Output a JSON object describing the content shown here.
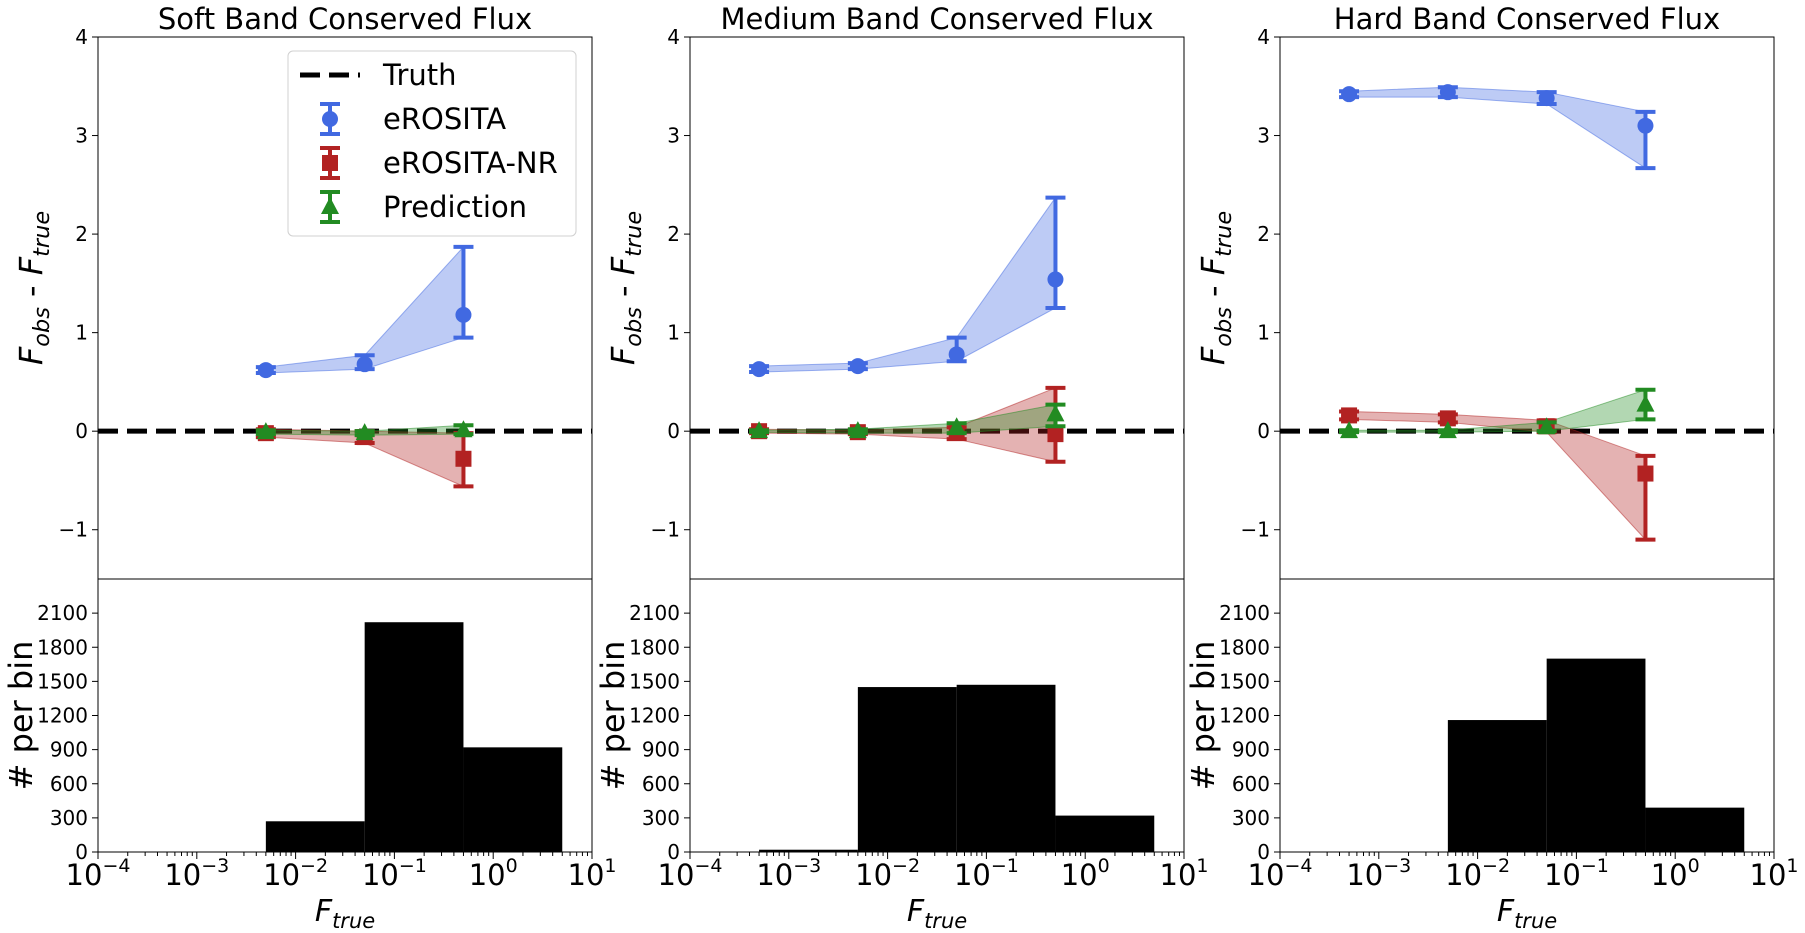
{
  "chart_data": [
    {
      "type": "line",
      "title": "Soft Band Conserved Flux",
      "ylabel_main": "F_obs - F_true",
      "ylabel_hist": "# per bin",
      "xlabel": "F_true",
      "xscale": "log",
      "xlim": [
        0.0001,
        10
      ],
      "ylim_main": [
        -1.5,
        4
      ],
      "ylim_hist": [
        0,
        2400
      ],
      "x_ticks": [
        {
          "base": "10",
          "exp": "−4"
        },
        {
          "base": "10",
          "exp": "−3"
        },
        {
          "base": "10",
          "exp": "−2"
        },
        {
          "base": "10",
          "exp": "−1"
        },
        {
          "base": "10",
          "exp": "0"
        },
        {
          "base": "10",
          "exp": "1"
        }
      ],
      "y_ticks_main": [
        "−1",
        "0",
        "1",
        "2",
        "3",
        "4"
      ],
      "y_ticks_hist": [
        "0",
        "300",
        "600",
        "900",
        "1200",
        "1500",
        "1800",
        "2100"
      ],
      "legend": {
        "placement": "top-right",
        "entries": [
          "Truth",
          "eROSITA",
          "eROSITA-NR",
          "Prediction"
        ]
      },
      "truth_line": 0,
      "series": [
        {
          "name": "eROSITA",
          "color": "#4169e1",
          "marker": "circle",
          "points": [
            {
              "x": 0.005,
              "y": 0.62,
              "lo": 0.59,
              "hi": 0.65
            },
            {
              "x": 0.05,
              "y": 0.68,
              "lo": 0.63,
              "hi": 0.77
            },
            {
              "x": 0.5,
              "y": 1.18,
              "lo": 0.95,
              "hi": 1.87
            }
          ]
        },
        {
          "name": "eROSITA-NR",
          "color": "#b22222",
          "marker": "square",
          "points": [
            {
              "x": 0.005,
              "y": -0.02,
              "lo": -0.06,
              "hi": 0.02
            },
            {
              "x": 0.05,
              "y": -0.06,
              "lo": -0.12,
              "hi": 0.0
            },
            {
              "x": 0.5,
              "y": -0.28,
              "lo": -0.56,
              "hi": -0.02
            }
          ]
        },
        {
          "name": "Prediction",
          "color": "#228b22",
          "marker": "triangle",
          "points": [
            {
              "x": 0.005,
              "y": -0.01,
              "lo": -0.03,
              "hi": 0.01
            },
            {
              "x": 0.05,
              "y": -0.02,
              "lo": -0.04,
              "hi": 0.0
            },
            {
              "x": 0.5,
              "y": 0.01,
              "lo": -0.03,
              "hi": 0.06
            }
          ]
        }
      ],
      "histogram": [
        {
          "x0": 0.005,
          "x1": 0.05,
          "count": 270
        },
        {
          "x0": 0.05,
          "x1": 0.5,
          "count": 2020
        },
        {
          "x0": 0.5,
          "x1": 5,
          "count": 920
        }
      ]
    },
    {
      "type": "line",
      "title": "Medium Band Conserved Flux",
      "ylabel_main": "F_obs - F_true",
      "ylabel_hist": "# per bin",
      "xlabel": "F_true",
      "xscale": "log",
      "xlim": [
        0.0001,
        10
      ],
      "ylim_main": [
        -1.5,
        4
      ],
      "ylim_hist": [
        0,
        2400
      ],
      "x_ticks": [
        {
          "base": "10",
          "exp": "−4"
        },
        {
          "base": "10",
          "exp": "−3"
        },
        {
          "base": "10",
          "exp": "−2"
        },
        {
          "base": "10",
          "exp": "−1"
        },
        {
          "base": "10",
          "exp": "0"
        },
        {
          "base": "10",
          "exp": "1"
        }
      ],
      "y_ticks_main": [
        "−1",
        "0",
        "1",
        "2",
        "3",
        "4"
      ],
      "y_ticks_hist": [
        "0",
        "300",
        "600",
        "900",
        "1200",
        "1500",
        "1800",
        "2100"
      ],
      "truth_line": 0,
      "series": [
        {
          "name": "eROSITA",
          "color": "#4169e1",
          "marker": "circle",
          "points": [
            {
              "x": 0.0005,
              "y": 0.63,
              "lo": 0.6,
              "hi": 0.66
            },
            {
              "x": 0.005,
              "y": 0.66,
              "lo": 0.63,
              "hi": 0.69
            },
            {
              "x": 0.05,
              "y": 0.78,
              "lo": 0.71,
              "hi": 0.95
            },
            {
              "x": 0.5,
              "y": 1.54,
              "lo": 1.25,
              "hi": 2.37
            }
          ]
        },
        {
          "name": "eROSITA-NR",
          "color": "#b22222",
          "marker": "square",
          "points": [
            {
              "x": 0.0005,
              "y": 0.0,
              "lo": -0.02,
              "hi": 0.02
            },
            {
              "x": 0.005,
              "y": -0.01,
              "lo": -0.03,
              "hi": 0.01
            },
            {
              "x": 0.05,
              "y": -0.01,
              "lo": -0.08,
              "hi": 0.04
            },
            {
              "x": 0.5,
              "y": -0.03,
              "lo": -0.31,
              "hi": 0.44
            }
          ]
        },
        {
          "name": "Prediction",
          "color": "#228b22",
          "marker": "triangle",
          "points": [
            {
              "x": 0.0005,
              "y": 0.0,
              "lo": -0.01,
              "hi": 0.01
            },
            {
              "x": 0.005,
              "y": 0.0,
              "lo": -0.02,
              "hi": 0.02
            },
            {
              "x": 0.05,
              "y": 0.04,
              "lo": -0.02,
              "hi": 0.08
            },
            {
              "x": 0.5,
              "y": 0.17,
              "lo": 0.05,
              "hi": 0.27
            }
          ]
        }
      ],
      "histogram": [
        {
          "x0": 0.0005,
          "x1": 0.005,
          "count": 20
        },
        {
          "x0": 0.005,
          "x1": 0.05,
          "count": 1450
        },
        {
          "x0": 0.05,
          "x1": 0.5,
          "count": 1470
        },
        {
          "x0": 0.5,
          "x1": 5,
          "count": 320
        }
      ]
    },
    {
      "type": "line",
      "title": "Hard Band Conserved Flux",
      "ylabel_main": "F_obs - F_true",
      "ylabel_hist": "# per bin",
      "xlabel": "F_true",
      "xscale": "log",
      "xlim": [
        0.0001,
        10
      ],
      "ylim_main": [
        -1.5,
        4
      ],
      "ylim_hist": [
        0,
        2400
      ],
      "x_ticks": [
        {
          "base": "10",
          "exp": "−4"
        },
        {
          "base": "10",
          "exp": "−3"
        },
        {
          "base": "10",
          "exp": "−2"
        },
        {
          "base": "10",
          "exp": "−1"
        },
        {
          "base": "10",
          "exp": "0"
        },
        {
          "base": "10",
          "exp": "1"
        }
      ],
      "y_ticks_main": [
        "−1",
        "0",
        "1",
        "2",
        "3",
        "4"
      ],
      "y_ticks_hist": [
        "0",
        "300",
        "600",
        "900",
        "1200",
        "1500",
        "1800",
        "2100"
      ],
      "truth_line": 0,
      "series": [
        {
          "name": "eROSITA",
          "color": "#4169e1",
          "marker": "circle",
          "points": [
            {
              "x": 0.0005,
              "y": 3.42,
              "lo": 3.39,
              "hi": 3.45
            },
            {
              "x": 0.005,
              "y": 3.44,
              "lo": 3.39,
              "hi": 3.49
            },
            {
              "x": 0.05,
              "y": 3.38,
              "lo": 3.32,
              "hi": 3.44
            },
            {
              "x": 0.5,
              "y": 3.1,
              "lo": 2.67,
              "hi": 3.24
            }
          ]
        },
        {
          "name": "eROSITA-NR",
          "color": "#b22222",
          "marker": "square",
          "points": [
            {
              "x": 0.0005,
              "y": 0.16,
              "lo": 0.12,
              "hi": 0.2
            },
            {
              "x": 0.005,
              "y": 0.13,
              "lo": 0.09,
              "hi": 0.17
            },
            {
              "x": 0.05,
              "y": 0.05,
              "lo": -0.01,
              "hi": 0.11
            },
            {
              "x": 0.5,
              "y": -0.43,
              "lo": -1.1,
              "hi": -0.25
            }
          ]
        },
        {
          "name": "Prediction",
          "color": "#228b22",
          "marker": "triangle",
          "points": [
            {
              "x": 0.0005,
              "y": 0.0,
              "lo": -0.01,
              "hi": 0.01
            },
            {
              "x": 0.005,
              "y": 0.0,
              "lo": -0.01,
              "hi": 0.01
            },
            {
              "x": 0.05,
              "y": 0.04,
              "lo": 0.0,
              "hi": 0.09
            },
            {
              "x": 0.5,
              "y": 0.27,
              "lo": 0.12,
              "hi": 0.42
            }
          ]
        }
      ],
      "histogram": [
        {
          "x0": 0.005,
          "x1": 0.05,
          "count": 1160
        },
        {
          "x0": 0.05,
          "x1": 0.5,
          "count": 1700
        },
        {
          "x0": 0.5,
          "x1": 5,
          "count": 390
        }
      ]
    }
  ]
}
